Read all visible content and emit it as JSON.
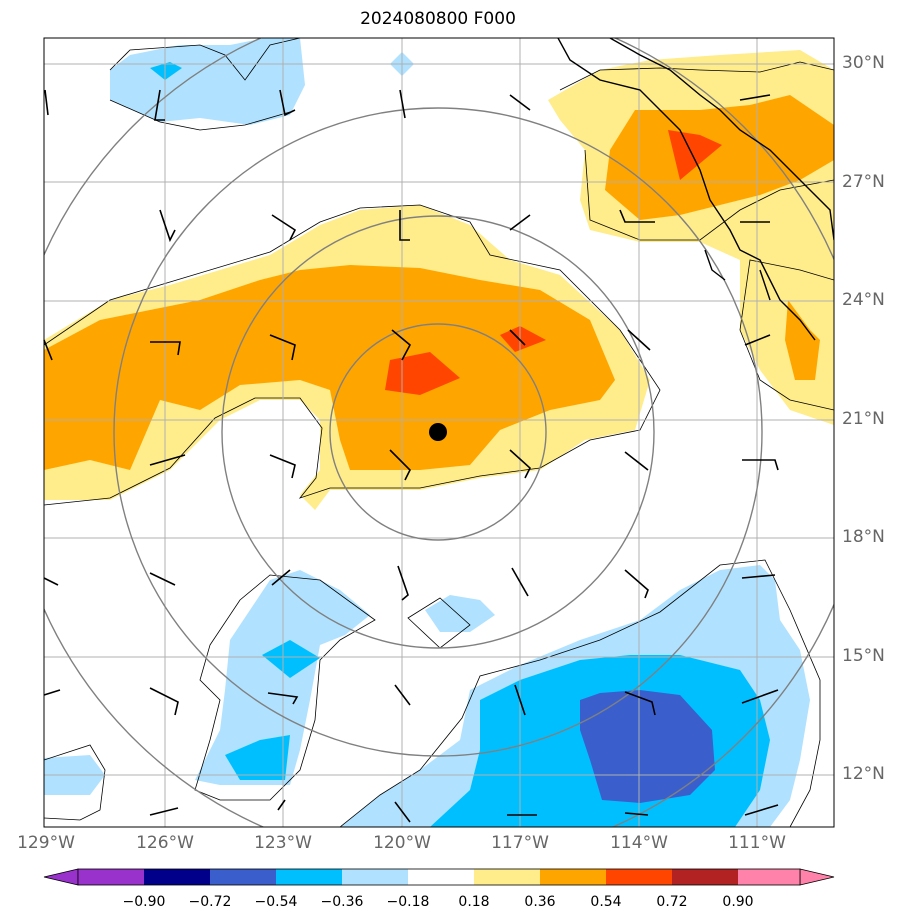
{
  "title": "2024080800 F000",
  "lat_labels": [
    "30°N",
    "27°N",
    "24°N",
    "21°N",
    "18°N",
    "15°N",
    "12°N"
  ],
  "lon_labels": [
    "129°W",
    "126°W",
    "123°W",
    "120°W",
    "117°W",
    "114°W",
    "111°W"
  ],
  "colorbar": {
    "ticks": [
      "−0.90",
      "−0.72",
      "−0.54",
      "−0.36",
      "−0.18",
      "0.18",
      "0.36",
      "0.54",
      "0.72",
      "0.90"
    ],
    "colors": [
      "#9932cc",
      "#00008b",
      "#3a5fcd",
      "#00bfff",
      "#b0e2ff",
      "#ffffff",
      "#ffec8b",
      "#ffa500",
      "#ff4500",
      "#b22222",
      "#ff82ab"
    ]
  },
  "center_marker": "storm-center-dot"
}
